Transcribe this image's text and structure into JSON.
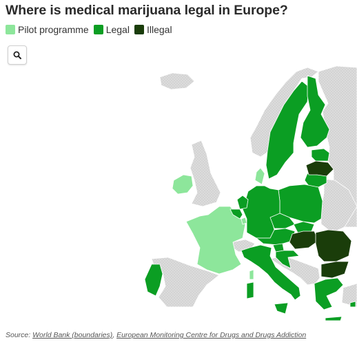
{
  "title": "Where is medical marijuana legal in Europe?",
  "legend": [
    {
      "label": "Pilot programme",
      "color": "#8de69b"
    },
    {
      "label": "Legal",
      "color": "#0b9e23"
    },
    {
      "label": "Illegal",
      "color": "#1a3d0a"
    }
  ],
  "zoom_button": {
    "icon": "search-icon"
  },
  "colors": {
    "non_eu": "#d9d9d9",
    "border": "#ffffff"
  },
  "countries": [
    {
      "name": "Iceland",
      "status": "none"
    },
    {
      "name": "Norway",
      "status": "none"
    },
    {
      "name": "United Kingdom",
      "status": "none"
    },
    {
      "name": "Ireland",
      "status": "pilot"
    },
    {
      "name": "France",
      "status": "pilot"
    },
    {
      "name": "Denmark",
      "status": "pilot"
    },
    {
      "name": "Luxembourg",
      "status": "pilot"
    },
    {
      "name": "Sweden",
      "status": "legal"
    },
    {
      "name": "Finland",
      "status": "legal"
    },
    {
      "name": "Estonia",
      "status": "legal"
    },
    {
      "name": "Latvia",
      "status": "illegal"
    },
    {
      "name": "Lithuania",
      "status": "legal"
    },
    {
      "name": "Poland",
      "status": "legal"
    },
    {
      "name": "Germany",
      "status": "legal"
    },
    {
      "name": "Netherlands",
      "status": "legal"
    },
    {
      "name": "Belgium",
      "status": "legal"
    },
    {
      "name": "Czechia",
      "status": "legal"
    },
    {
      "name": "Slovakia",
      "status": "legal"
    },
    {
      "name": "Austria",
      "status": "legal"
    },
    {
      "name": "Hungary",
      "status": "illegal"
    },
    {
      "name": "Romania",
      "status": "illegal"
    },
    {
      "name": "Bulgaria",
      "status": "illegal"
    },
    {
      "name": "Slovenia",
      "status": "legal"
    },
    {
      "name": "Croatia",
      "status": "legal"
    },
    {
      "name": "Italy",
      "status": "legal"
    },
    {
      "name": "Spain",
      "status": "none"
    },
    {
      "name": "Portugal",
      "status": "legal"
    },
    {
      "name": "Greece",
      "status": "legal"
    },
    {
      "name": "Cyprus",
      "status": "legal"
    }
  ],
  "source": {
    "prefix": "Source: ",
    "link1": "World Bank (boundaries)",
    "separator": ", ",
    "link2": "European Monitoring Centre for Drugs and Drugs Addiction"
  }
}
